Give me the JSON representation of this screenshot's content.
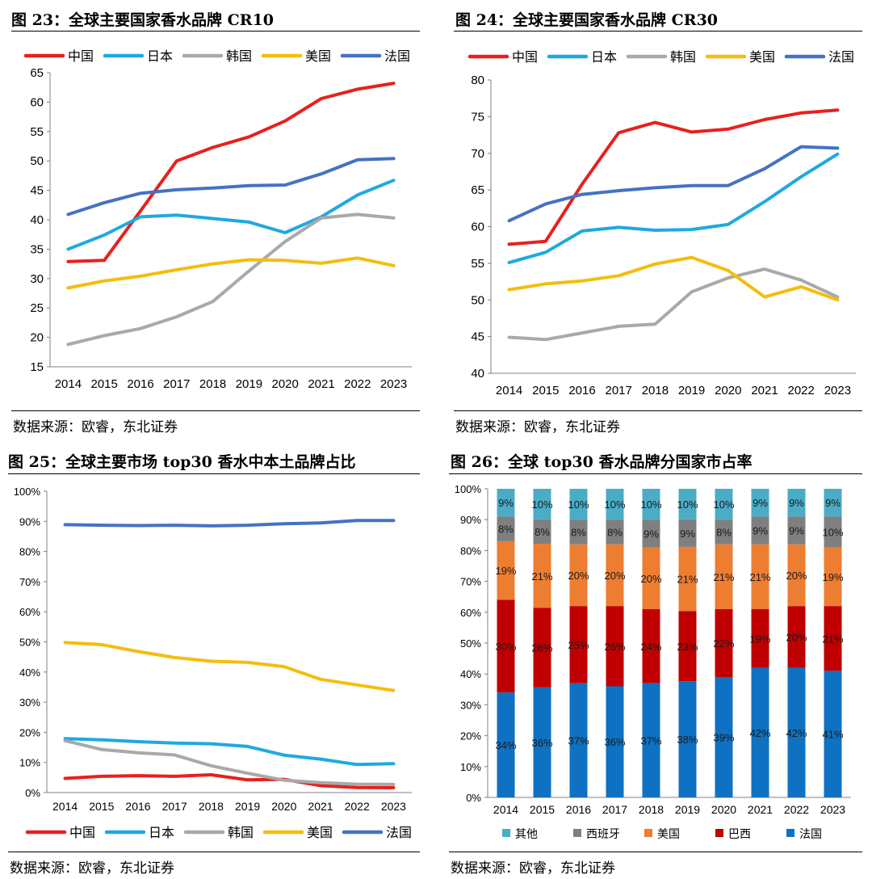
{
  "charts": {
    "c23": {
      "title": "图  23：全球主要国家香水品牌 CR10",
      "source": "数据来源：欧睿，东北证券",
      "chart_data": {
        "type": "line",
        "categories": [
          "2014",
          "2015",
          "2016",
          "2017",
          "2018",
          "2019",
          "2020",
          "2021",
          "2022",
          "2023"
        ],
        "ylim": [
          15,
          65
        ],
        "yticks": [
          15,
          20,
          25,
          30,
          35,
          40,
          45,
          50,
          55,
          60,
          65
        ],
        "legend_position": "top",
        "series": [
          {
            "name": "中国",
            "color": "#e8201e",
            "values": [
              32.9,
              33.1,
              41.5,
              50.0,
              52.3,
              54.1,
              56.8,
              60.6,
              62.2,
              63.2
            ]
          },
          {
            "name": "日本",
            "color": "#1fa9e0",
            "values": [
              35.0,
              37.4,
              40.5,
              40.8,
              40.2,
              39.6,
              37.8,
              40.5,
              44.2,
              46.7
            ]
          },
          {
            "name": "韩国",
            "color": "#a9a9a9",
            "values": [
              18.8,
              20.3,
              21.5,
              23.5,
              26.1,
              31.3,
              36.3,
              40.3,
              40.9,
              40.3
            ]
          },
          {
            "name": "美国",
            "color": "#f4bd0e",
            "values": [
              28.4,
              29.6,
              30.4,
              31.5,
              32.5,
              33.2,
              33.1,
              32.6,
              33.5,
              32.2
            ]
          },
          {
            "name": "法国",
            "color": "#4472c4",
            "values": [
              40.9,
              42.9,
              44.5,
              45.1,
              45.4,
              45.8,
              45.9,
              47.8,
              50.2,
              50.4
            ]
          }
        ]
      }
    },
    "c24": {
      "title": "图  24：全球主要国家香水品牌 CR30",
      "source": "数据来源：欧睿，东北证券",
      "chart_data": {
        "type": "line",
        "categories": [
          "2014",
          "2015",
          "2016",
          "2017",
          "2018",
          "2019",
          "2020",
          "2021",
          "2022",
          "2023"
        ],
        "ylim": [
          40,
          80
        ],
        "yticks": [
          40,
          45,
          50,
          55,
          60,
          65,
          70,
          75,
          80
        ],
        "legend_position": "top",
        "series": [
          {
            "name": "中国",
            "color": "#e8201e",
            "values": [
              57.6,
              58.0,
              65.8,
              72.8,
              74.2,
              72.9,
              73.3,
              74.6,
              75.5,
              75.9
            ]
          },
          {
            "name": "日本",
            "color": "#1fa9e0",
            "values": [
              55.1,
              56.5,
              59.4,
              59.9,
              59.5,
              59.6,
              60.3,
              63.4,
              66.8,
              69.9
            ]
          },
          {
            "name": "韩国",
            "color": "#a9a9a9",
            "values": [
              44.9,
              44.6,
              45.5,
              46.4,
              46.7,
              51.1,
              53.0,
              54.2,
              52.7,
              50.4
            ]
          },
          {
            "name": "美国",
            "color": "#f4bd0e",
            "values": [
              51.4,
              52.2,
              52.6,
              53.3,
              54.9,
              55.8,
              54.0,
              50.4,
              51.8,
              50.0
            ]
          },
          {
            "name": "法国",
            "color": "#4472c4",
            "values": [
              60.8,
              63.1,
              64.4,
              64.9,
              65.3,
              65.6,
              65.6,
              67.9,
              70.9,
              70.7
            ]
          }
        ]
      }
    },
    "c25": {
      "title": "图  25：全球主要市场 top30 香水中本土品牌占比",
      "source": "数据来源：欧睿，东北证券",
      "chart_data": {
        "type": "line",
        "categories": [
          "2014",
          "2015",
          "2016",
          "2017",
          "2018",
          "2019",
          "2020",
          "2021",
          "2022",
          "2023"
        ],
        "ylim": [
          0,
          100
        ],
        "yticks": [
          0,
          10,
          20,
          30,
          40,
          50,
          60,
          70,
          80,
          90,
          100
        ],
        "ytick_suffix": "%",
        "legend_position": "bottom",
        "series": [
          {
            "name": "中国",
            "color": "#e8201e",
            "values": [
              4.7,
              5.4,
              5.6,
              5.4,
              5.9,
              4.2,
              4.4,
              2.3,
              1.7,
              1.6
            ]
          },
          {
            "name": "日本",
            "color": "#1fa9e0",
            "values": [
              17.9,
              17.5,
              16.9,
              16.4,
              16.2,
              15.3,
              12.4,
              11.1,
              9.3,
              9.6
            ]
          },
          {
            "name": "韩国",
            "color": "#a9a9a9",
            "values": [
              17.2,
              14.3,
              13.2,
              12.5,
              8.9,
              6.4,
              4.1,
              3.3,
              2.8,
              2.7
            ]
          },
          {
            "name": "美国",
            "color": "#f4bd0e",
            "values": [
              49.8,
              49.1,
              46.8,
              44.8,
              43.6,
              43.2,
              41.8,
              37.6,
              35.7,
              33.9
            ]
          },
          {
            "name": "法国",
            "color": "#4472c4",
            "values": [
              88.9,
              88.7,
              88.6,
              88.7,
              88.5,
              88.7,
              89.2,
              89.5,
              90.3,
              90.3
            ]
          }
        ]
      }
    },
    "c26": {
      "title": "图  26：全球 top30 香水品牌分国家市占率",
      "source": "数据来源：欧睿，东北证券",
      "chart_data": {
        "type": "bar",
        "stacked": true,
        "categories": [
          "2014",
          "2015",
          "2016",
          "2017",
          "2018",
          "2019",
          "2020",
          "2021",
          "2022",
          "2023"
        ],
        "ylim": [
          0,
          100
        ],
        "yticks": [
          0,
          10,
          20,
          30,
          40,
          50,
          60,
          70,
          80,
          90,
          100
        ],
        "ytick_suffix": "%",
        "legend_position": "bottom",
        "series": [
          {
            "name": "法国",
            "color": "#0f71c2",
            "values": [
              34,
              36,
              37,
              36,
              37,
              38,
              39,
              42,
              42,
              41
            ],
            "labels": [
              "34%",
              "36%",
              "37%",
              "36%",
              "37%",
              "38%",
              "39%",
              "42%",
              "42%",
              "41%"
            ]
          },
          {
            "name": "巴西",
            "color": "#c00000",
            "values": [
              30,
              26,
              25,
              26,
              24,
              23,
              22,
              19,
              20,
              21
            ],
            "labels": [
              "30%",
              "26%",
              "25%",
              "26%",
              "24%",
              "23%",
              "22%",
              "19%",
              "20%",
              "21%"
            ]
          },
          {
            "name": "美国",
            "color": "#ed7d31",
            "values": [
              19,
              21,
              20,
              20,
              20,
              21,
              21,
              21,
              20,
              19
            ],
            "labels": [
              "19%",
              "21%",
              "20%",
              "20%",
              "20%",
              "21%",
              "21%",
              "21%",
              "20%",
              "19%"
            ]
          },
          {
            "name": "西班牙",
            "color": "#7f7f7f",
            "values": [
              8,
              8,
              8,
              8,
              9,
              9,
              8,
              9,
              9,
              10
            ],
            "labels": [
              "8%",
              "8%",
              "8%",
              "8%",
              "9%",
              "9%",
              "8%",
              "9%",
              "9%",
              "10%"
            ]
          },
          {
            "name": "其他",
            "color": "#4bacc6",
            "values": [
              9,
              10,
              10,
              10,
              10,
              10,
              10,
              9,
              9,
              9
            ],
            "labels": [
              "9%",
              "10%",
              "10%",
              "10%",
              "10%",
              "10%",
              "10%",
              "9%",
              "9%",
              "9%"
            ]
          }
        ],
        "legend_order": [
          "其他",
          "西班牙",
          "美国",
          "巴西",
          "法国"
        ]
      }
    }
  }
}
